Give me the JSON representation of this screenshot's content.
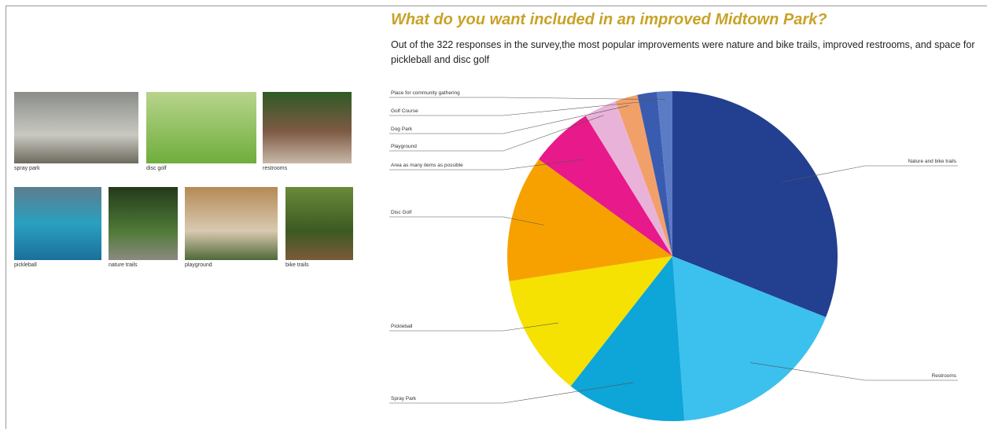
{
  "photos": {
    "captions": [
      "spray park",
      "disc golf",
      "restrooms",
      "pickleball",
      "nature trails",
      "playground",
      "bike trails"
    ]
  },
  "chart_data": {
    "type": "pie",
    "title": "What do you want included in an improved Midtown Park?",
    "subtitle": "Out of the 322 responses in the survey,the most popular improvements were nature and bike trails, improved restrooms, and space for pickleball and disc golf",
    "categories": [
      "Nature and bike trails",
      "Restrooms",
      "Spray Park",
      "Pickleball",
      "Disc Golf",
      "Area as many items as possible",
      "Playground",
      "Dog Park",
      "Golf Course",
      "Place for community gathering"
    ],
    "values": [
      31,
      17.8,
      11.7,
      12,
      12.4,
      6.2,
      3.2,
      2.2,
      1.9,
      1.5
    ],
    "colors": [
      "#233f8f",
      "#3cc0ee",
      "#0ea5d8",
      "#f5e203",
      "#f7a100",
      "#e8198a",
      "#e9b3d9",
      "#f2a06a",
      "#3a5cb0",
      "#5b7cc4"
    ]
  }
}
